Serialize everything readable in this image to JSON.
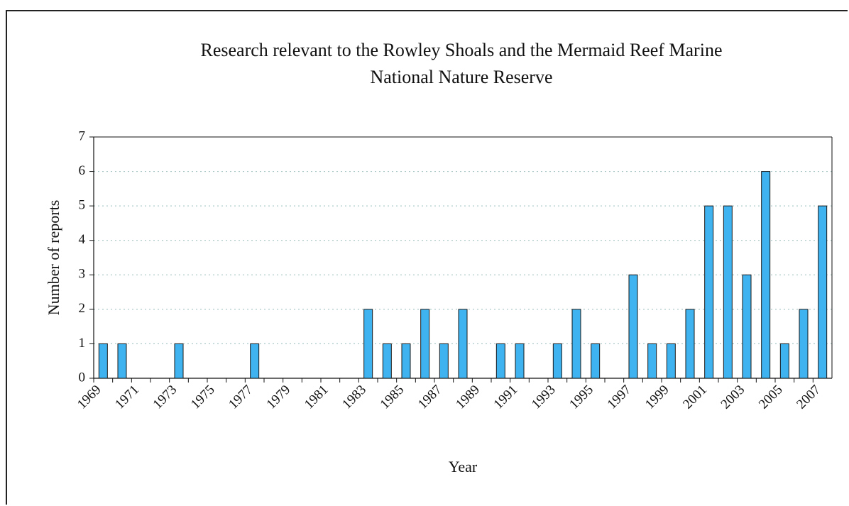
{
  "chart_data": {
    "type": "bar",
    "title": "Research relevant to the Rowley Shoals and the Mermaid Reef Marine\nNational Nature Reserve",
    "x_label": "Year",
    "y_label": "Number of reports",
    "categories": [
      "1969",
      null,
      "1971",
      null,
      "1973",
      null,
      "1975",
      null,
      "1977",
      null,
      "1979",
      null,
      "1981",
      null,
      "1983",
      null,
      "1985",
      null,
      "1987",
      null,
      "1989",
      null,
      "1991",
      null,
      "1993",
      null,
      "1995",
      null,
      "1997",
      null,
      "1999",
      null,
      "2001",
      null,
      "2003",
      null,
      "2005",
      null,
      "2007"
    ],
    "values": [
      1,
      1,
      0,
      0,
      1,
      0,
      0,
      0,
      1,
      0,
      0,
      0,
      0,
      0,
      2,
      1,
      1,
      2,
      1,
      2,
      0,
      1,
      1,
      0,
      1,
      2,
      1,
      0,
      3,
      1,
      1,
      2,
      5,
      5,
      3,
      6,
      1,
      2,
      5
    ],
    "color": "#3fb2f0",
    "ylim": [
      0,
      7
    ],
    "yticks": [
      0,
      1,
      2,
      3,
      4,
      5,
      6,
      7
    ],
    "grid": true
  }
}
